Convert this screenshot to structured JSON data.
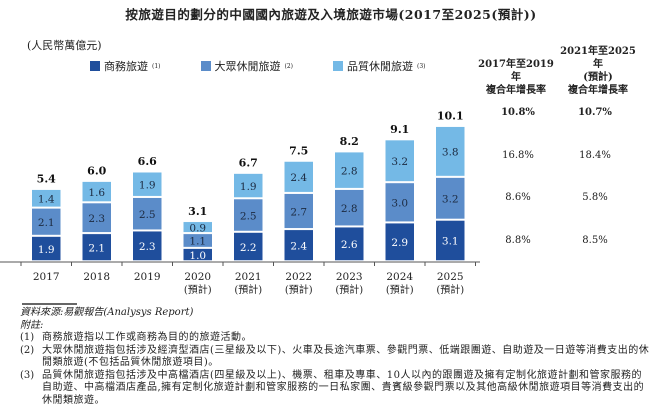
{
  "title": "按旅遊目的劃分的中國國內旅遊及入境旅遊市場(2017至2025(預計))",
  "unit_label": "(人民幣萬億元)",
  "colors": {
    "business": "#1f4e9c",
    "mass_leisure": "#5b8cc9",
    "quality_leisure": "#74b9e6"
  },
  "chart_data": {
    "type": "bar",
    "stacked": true,
    "title": "按旅遊目的劃分的中國國內旅遊及入境旅遊市場(2017至2025(預計))",
    "ylabel": "(人民幣萬億元)",
    "categories": [
      "2017",
      "2018",
      "2019",
      "2020",
      "2021",
      "2022",
      "2023",
      "2024",
      "2025"
    ],
    "category_sublabels": [
      "",
      "",
      "",
      "(預計)",
      "(預計)",
      "(預計)",
      "(預計)",
      "(預計)",
      "(預計)"
    ],
    "series": [
      {
        "name": "商務旅遊",
        "note": "(1)",
        "values": [
          1.9,
          2.1,
          2.3,
          1.0,
          2.2,
          2.4,
          2.6,
          2.9,
          3.1
        ]
      },
      {
        "name": "大眾休閒旅遊",
        "note": "(2)",
        "values": [
          2.1,
          2.3,
          2.5,
          1.1,
          2.5,
          2.7,
          2.8,
          3.0,
          3.2
        ]
      },
      {
        "name": "品質休閒旅遊",
        "note": "(3)",
        "values": [
          1.4,
          1.6,
          1.9,
          0.9,
          1.9,
          2.4,
          2.8,
          3.2,
          3.8
        ]
      }
    ],
    "totals": [
      "5.4",
      "6.0",
      "6.6",
      "3.1",
      "6.7",
      "7.5",
      "8.2",
      "9.1",
      "10.1"
    ],
    "labels": [
      [
        "1.9",
        "2.1",
        "2.3",
        "1.0",
        "2.2",
        "2.4",
        "2.6",
        "2.9",
        "3.1"
      ],
      [
        "2.1",
        "2.3",
        "2.5",
        "1.1",
        "2.5",
        "2.7",
        "2.8",
        "3.0",
        "3.2"
      ],
      [
        "1.4",
        "1.6",
        "1.9",
        "0.9",
        "1.9",
        "2.4",
        "2.8",
        "3.2",
        "3.8"
      ]
    ],
    "ylim": [
      0,
      10.5
    ],
    "grid": false,
    "legend": "top"
  },
  "cagr": {
    "col1_header_line1": "2017年至2019年",
    "col1_header_line2": "複合年增長率",
    "col2_header_line1": "2021年至2025年",
    "col2_header_line2": "(預計)",
    "col2_header_line3": "複合年增長率",
    "rows": [
      {
        "c1": "10.8%",
        "c2": "10.7%"
      },
      {
        "c1": "16.8%",
        "c2": "18.4%"
      },
      {
        "c1": "8.6%",
        "c2": "5.8%"
      },
      {
        "c1": "8.8%",
        "c2": "8.5%"
      }
    ]
  },
  "footer": {
    "source": "資料來源:易觀報告(Analysys Report)",
    "notes_label": "附註:",
    "notes": [
      {
        "num": "(1)",
        "text": "商務旅遊指以工作或商務為目的的旅遊活動。"
      },
      {
        "num": "(2)",
        "text": "大眾休閒旅遊指包括涉及經濟型酒店(三星級及以下)、火車及長途汽車票、參觀門票、低端跟團遊、自助遊及一日遊等消費支出的休閒類旅遊(不包括品質休閒旅遊項目)。"
      },
      {
        "num": "(3)",
        "text": "品質休閒旅遊指包括涉及中高檔酒店(四星級及以上)、機票、租車及專車、10人以內的跟團遊及擁有定制化旅遊計劃和管家服務的自助遊、中高檔酒店產品,擁有定制化旅遊計劃和管家服務的一日私家團、貴賓級參觀門票以及其他高級休閒旅遊項目等消費支出的休閒類旅遊。"
      }
    ]
  }
}
